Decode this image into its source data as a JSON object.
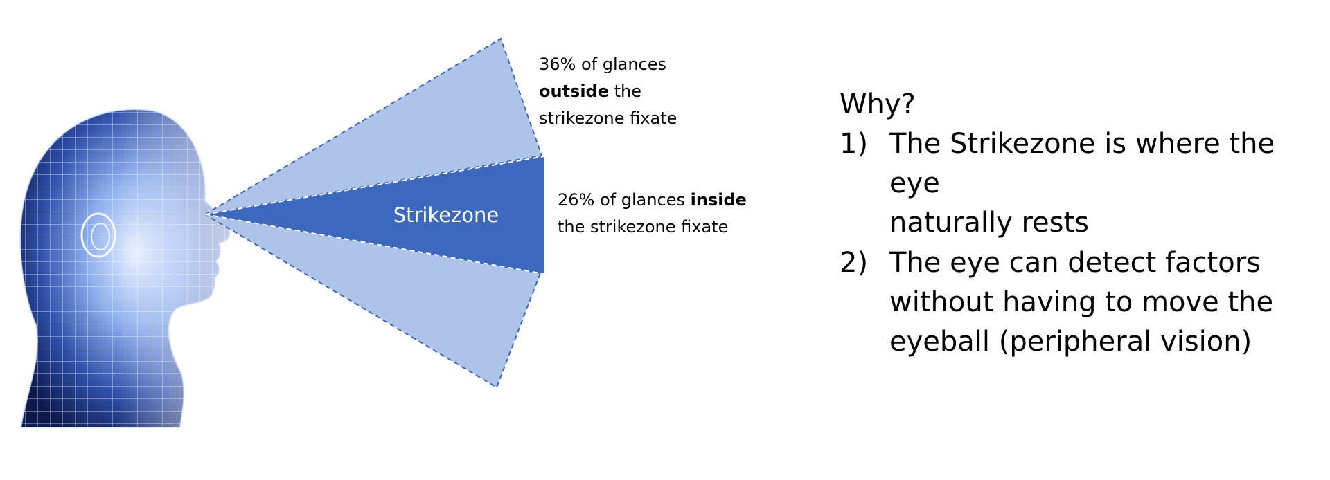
{
  "colors": {
    "cone_light": "#aec3e8",
    "cone_dark": "#3c69bd",
    "cone_border": "#3d67b6",
    "head_dark": "#0d1a4d",
    "head_light": "#cfe0ff"
  },
  "icons": {
    "head": "human-head-wireframe-profile"
  },
  "strikezone": {
    "label": "Strikezone"
  },
  "callouts": {
    "outside": {
      "part1": "36% of glances",
      "bold": "outside",
      "part2": " the",
      "part3": "strikezone fixate"
    },
    "inside": {
      "part1": "26% of glances ",
      "bold": "inside",
      "part2": "the strikezone fixate"
    }
  },
  "why": {
    "title": "Why?",
    "reasons": [
      {
        "num": "1)",
        "line1": "The Strikezone is where the eye",
        "line2": "naturally rests"
      },
      {
        "num": "2)",
        "line1": "The eye can detect factors",
        "line2": "without having to move the",
        "line3": "eyeball (peripheral vision)"
      }
    ]
  }
}
